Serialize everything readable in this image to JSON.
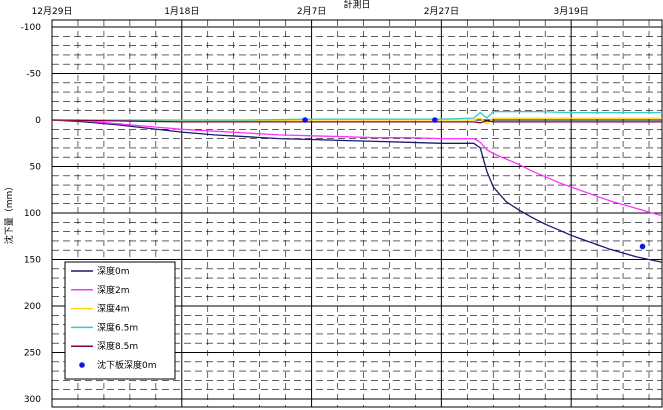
{
  "chart_data": {
    "type": "line",
    "title": "",
    "xlabel": "計測日",
    "ylabel": "沈下量（mm）",
    "x_tick_labels": [
      "12月29日",
      "1月18日",
      "2月7日",
      "2月27日",
      "3月19日"
    ],
    "y_tick_labels": [
      "-100",
      "-50",
      "0",
      "50",
      "100",
      "150",
      "200",
      "250",
      "300"
    ],
    "ylim": [
      -100,
      300
    ],
    "y_inverted": true,
    "xlim_days": [
      0,
      94
    ],
    "grid": true,
    "legend_position": "bottom-left",
    "series": [
      {
        "name": "深度0m",
        "color": "#1a1a6e",
        "style": "line",
        "x": [
          0,
          5,
          10,
          15,
          20,
          25,
          30,
          35,
          40,
          45,
          50,
          55,
          60,
          65,
          66,
          67,
          68,
          70,
          72,
          74,
          76,
          78,
          80,
          82,
          84,
          86,
          88,
          90,
          92,
          94
        ],
        "y": [
          0,
          2,
          5,
          9,
          13,
          16,
          18,
          20,
          21,
          22,
          23,
          24,
          25,
          25,
          30,
          55,
          72,
          88,
          97,
          105,
          112,
          118,
          124,
          129,
          134,
          139,
          143,
          147,
          150,
          153
        ]
      },
      {
        "name": "深度2m",
        "color": "#ff33ff",
        "style": "line",
        "x": [
          0,
          5,
          10,
          15,
          20,
          25,
          30,
          35,
          40,
          45,
          50,
          55,
          60,
          65,
          66,
          67,
          68,
          70,
          72,
          74,
          76,
          78,
          80,
          82,
          84,
          86,
          88,
          90,
          92,
          94
        ],
        "y": [
          0,
          1,
          4,
          7,
          10,
          12,
          14,
          16,
          17,
          18,
          19,
          19,
          20,
          20,
          24,
          32,
          36,
          42,
          48,
          55,
          61,
          67,
          72,
          77,
          82,
          87,
          91,
          95,
          99,
          103
        ]
      },
      {
        "name": "深度4m",
        "color": "#ffd700",
        "style": "line",
        "x": [
          0,
          10,
          20,
          30,
          40,
          50,
          60,
          65,
          66,
          67,
          68,
          70,
          75,
          80,
          85,
          90,
          94
        ],
        "y": [
          0,
          1,
          1,
          1,
          0,
          0,
          0,
          0,
          -2,
          4,
          -2,
          -2,
          -2,
          -2,
          -2,
          -2,
          -2
        ]
      },
      {
        "name": "深度6.5m",
        "color": "#33cccc",
        "style": "line",
        "x": [
          0,
          10,
          20,
          30,
          40,
          50,
          60,
          65,
          66,
          67,
          68,
          70,
          75,
          80,
          85,
          90,
          94
        ],
        "y": [
          0,
          0,
          0,
          0,
          -1,
          -1,
          -1,
          -2,
          -8,
          -2,
          -9,
          -9,
          -9,
          -8,
          -8,
          -8,
          -8
        ]
      },
      {
        "name": "深度8.5m",
        "color": "#800040",
        "style": "line",
        "x": [
          0,
          10,
          20,
          30,
          40,
          50,
          60,
          65,
          66,
          67,
          68,
          70,
          75,
          80,
          85,
          90,
          94
        ],
        "y": [
          0,
          1,
          2,
          2,
          2,
          2,
          2,
          2,
          3,
          1,
          2,
          2,
          2,
          2,
          2,
          2,
          2
        ]
      },
      {
        "name": "沈下板深度0m",
        "color": "#1515e0",
        "style": "marker",
        "x": [
          39,
          59,
          91
        ],
        "y": [
          0,
          0,
          136
        ]
      }
    ]
  }
}
